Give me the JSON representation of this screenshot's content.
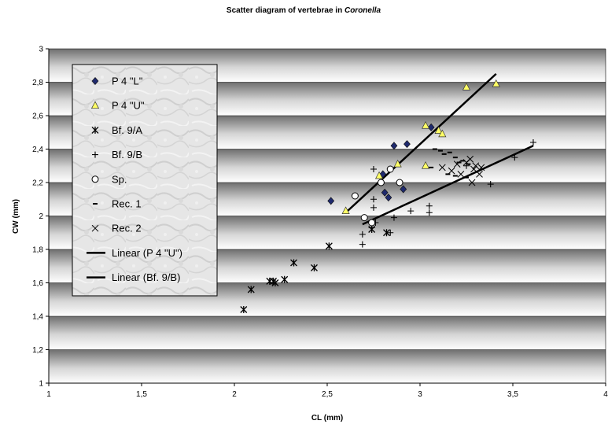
{
  "chart_data": {
    "type": "scatter",
    "title_prefix": "Scatter diagram of vertebrae in ",
    "title_italic": "Coronella",
    "xlabel": "CL (mm)",
    "ylabel": "CW (mm)",
    "xlim": [
      1,
      4
    ],
    "ylim": [
      1,
      3
    ],
    "x_ticks": [
      "1",
      "1,5",
      "2",
      "2,5",
      "3",
      "3,5",
      "4"
    ],
    "y_ticks": [
      "1",
      "1,2",
      "1,4",
      "1,6",
      "1,8",
      "2",
      "2,2",
      "2,4",
      "2,6",
      "2,8",
      "3"
    ],
    "grid": true,
    "legend_position": "left",
    "series": [
      {
        "name": "P 4 \"L\"",
        "marker": "diamond",
        "color": "#1f2a6e",
        "points": [
          [
            2.52,
            2.09
          ],
          [
            2.8,
            2.25
          ],
          [
            2.81,
            2.14
          ],
          [
            2.83,
            2.11
          ],
          [
            2.86,
            2.42
          ],
          [
            2.91,
            2.16
          ],
          [
            2.93,
            2.43
          ],
          [
            3.06,
            2.53
          ]
        ]
      },
      {
        "name": "P 4 \"U\"",
        "marker": "triangle",
        "color": "#ffff66",
        "points": [
          [
            2.6,
            2.03
          ],
          [
            2.78,
            2.24
          ],
          [
            2.88,
            2.31
          ],
          [
            3.03,
            2.54
          ],
          [
            3.03,
            2.3
          ],
          [
            3.1,
            2.51
          ],
          [
            3.12,
            2.49
          ],
          [
            3.25,
            2.77
          ],
          [
            3.41,
            2.79
          ]
        ]
      },
      {
        "name": "Bf. 9/A",
        "marker": "asterisk",
        "color": "#000000",
        "points": [
          [
            2.05,
            1.44
          ],
          [
            2.09,
            1.56
          ],
          [
            2.19,
            1.61
          ],
          [
            2.21,
            1.61
          ],
          [
            2.22,
            1.6
          ],
          [
            2.27,
            1.62
          ],
          [
            2.32,
            1.72
          ],
          [
            2.43,
            1.69
          ],
          [
            2.51,
            1.82
          ],
          [
            2.74,
            1.92
          ],
          [
            2.82,
            1.9
          ]
        ]
      },
      {
        "name": "Bf. 9/B",
        "marker": "plus",
        "color": "#000000",
        "points": [
          [
            2.69,
            1.83
          ],
          [
            2.69,
            1.89
          ],
          [
            2.74,
            1.93
          ],
          [
            2.75,
            2.28
          ],
          [
            2.75,
            2.1
          ],
          [
            2.75,
            2.05
          ],
          [
            2.76,
            1.96
          ],
          [
            2.84,
            1.9
          ],
          [
            2.86,
            1.99
          ],
          [
            2.95,
            2.03
          ],
          [
            3.05,
            2.06
          ],
          [
            3.05,
            2.02
          ],
          [
            3.25,
            2.3
          ],
          [
            3.38,
            2.19
          ],
          [
            3.51,
            2.35
          ],
          [
            3.61,
            2.44
          ]
        ]
      },
      {
        "name": "Sp.",
        "marker": "circle",
        "color": "#000000",
        "points": [
          [
            2.65,
            2.12
          ],
          [
            2.7,
            1.99
          ],
          [
            2.74,
            1.96
          ],
          [
            2.79,
            2.2
          ],
          [
            2.84,
            2.28
          ],
          [
            2.89,
            2.2
          ]
        ]
      },
      {
        "name": "Rec. 1",
        "marker": "dash",
        "color": "#000000",
        "points": [
          [
            3.08,
            2.4
          ],
          [
            3.11,
            2.39
          ],
          [
            3.13,
            2.37
          ],
          [
            3.16,
            2.38
          ],
          [
            3.19,
            2.35
          ],
          [
            3.21,
            2.32
          ],
          [
            3.23,
            2.33
          ],
          [
            3.26,
            2.31
          ],
          [
            3.06,
            2.29
          ],
          [
            3.15,
            2.25
          ],
          [
            3.19,
            2.24
          ],
          [
            3.25,
            2.23
          ]
        ]
      },
      {
        "name": "Rec. 2",
        "marker": "x",
        "color": "#000000",
        "points": [
          [
            3.12,
            2.29
          ],
          [
            3.17,
            2.27
          ],
          [
            3.2,
            2.31
          ],
          [
            3.22,
            2.25
          ],
          [
            3.25,
            2.32
          ],
          [
            3.27,
            2.34
          ],
          [
            3.28,
            2.2
          ],
          [
            3.29,
            2.28
          ],
          [
            3.3,
            2.3
          ],
          [
            3.32,
            2.25
          ],
          [
            3.33,
            2.29
          ]
        ]
      }
    ],
    "trendlines": [
      {
        "name": "Linear (P 4 \"U\")",
        "x": [
          2.6,
          3.41
        ],
        "y": [
          2.02,
          2.85
        ]
      },
      {
        "name": "Linear (Bf. 9/B)",
        "x": [
          2.69,
          3.61
        ],
        "y": [
          1.95,
          2.42
        ]
      }
    ]
  }
}
